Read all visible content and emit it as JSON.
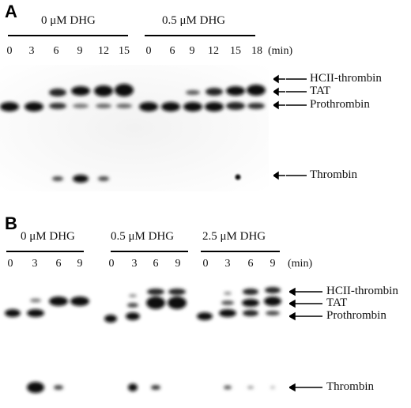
{
  "panel_a": {
    "letter": "A",
    "conditions": [
      "0 μM DHG",
      "0.5 μM DHG"
    ],
    "times_0": [
      "0",
      "3",
      "6",
      "9",
      "12",
      "15"
    ],
    "times_05": [
      "0",
      "6",
      "9",
      "12",
      "15",
      "18"
    ],
    "unit": "(min)",
    "labels": {
      "hcii": "HCII-thrombin",
      "tat": "TAT",
      "prothrombin": "Prothrombin",
      "thrombin": "Thrombin"
    }
  },
  "panel_b": {
    "letter": "B",
    "conditions": [
      "0 μM DHG",
      "0.5 μM DHG",
      "2.5 μM DHG"
    ],
    "times_0": [
      "0",
      "3",
      "6",
      "9"
    ],
    "times_05": [
      "0",
      "3",
      "6",
      "9"
    ],
    "times_25": [
      "0",
      "3",
      "6",
      "9"
    ],
    "unit": "(min)",
    "labels": {
      "hcii": "HCII-thrombin",
      "tat": "TAT",
      "prothrombin": "Prothrombin",
      "thrombin": "Thrombin"
    }
  }
}
